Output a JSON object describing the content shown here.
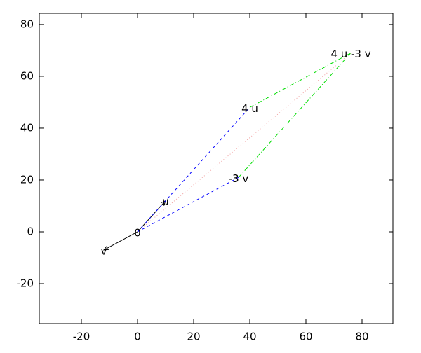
{
  "chart_data": {
    "type": "vector",
    "xlim": [
      -35,
      91
    ],
    "ylim": [
      -35.4,
      84.3
    ],
    "xticks": [
      -20,
      0,
      20,
      40,
      60,
      80
    ],
    "yticks": [
      -20,
      0,
      20,
      40,
      60,
      80
    ],
    "points": [
      {
        "label": "0",
        "x": 0,
        "y": 0
      },
      {
        "label": "u",
        "x": 10,
        "y": 12
      },
      {
        "label": "v",
        "x": -12,
        "y": -7
      },
      {
        "label": "4 u",
        "x": 40,
        "y": 48
      },
      {
        "label": "-3 v",
        "x": 36,
        "y": 21
      },
      {
        "label": "4 u -3 v",
        "x": 76,
        "y": 69
      }
    ],
    "segments": [
      {
        "from": "0",
        "to": "u",
        "color": "#000000",
        "style": "solid",
        "arrow": true
      },
      {
        "from": "0",
        "to": "v",
        "color": "#000000",
        "style": "solid",
        "arrow": true
      },
      {
        "from": "0",
        "to": "4 u",
        "color": "#0000ff",
        "style": "dashed",
        "arrow": false
      },
      {
        "from": "0",
        "to": "-3 v",
        "color": "#0000ff",
        "style": "dashed",
        "arrow": false
      },
      {
        "from": "4 u",
        "to": "4 u -3 v",
        "color": "#00dd00",
        "style": "dashdot",
        "arrow": false
      },
      {
        "from": "-3 v",
        "to": "4 u -3 v",
        "color": "#00dd00",
        "style": "dashdot",
        "arrow": false
      },
      {
        "from": "0",
        "to": "4 u -3 v",
        "color": "#f0a0a0",
        "style": "dotted",
        "arrow": false
      }
    ]
  }
}
